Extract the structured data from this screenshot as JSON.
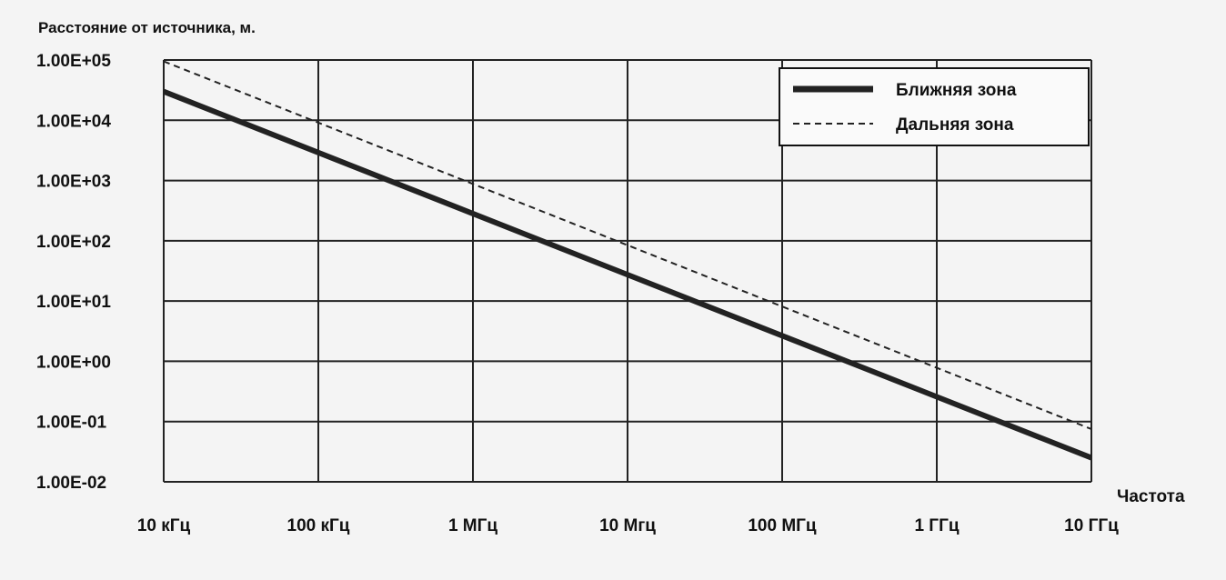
{
  "chart_data": {
    "type": "line",
    "ylabel": "Расстояние от источника, м.",
    "xlabel": "Частота",
    "x_scale": "log",
    "y_scale": "log",
    "x_unit": "Hz",
    "y_unit": "m",
    "x_ticks": [
      {
        "value": 10000,
        "label": "10 кГц"
      },
      {
        "value": 100000,
        "label": "100 кГц"
      },
      {
        "value": 1000000,
        "label": "1 МГц"
      },
      {
        "value": 10000000,
        "label": "10 Мгц"
      },
      {
        "value": 100000000,
        "label": "100 МГц"
      },
      {
        "value": 1000000000,
        "label": "1 ГГц"
      },
      {
        "value": 10000000000,
        "label": "10 ГГц"
      }
    ],
    "y_ticks": [
      {
        "value": 0.01,
        "label": "1.00E-02"
      },
      {
        "value": 0.1,
        "label": "1.00E-01"
      },
      {
        "value": 1,
        "label": "1.00E+00"
      },
      {
        "value": 10,
        "label": "1.00E+01"
      },
      {
        "value": 100,
        "label": "1.00E+02"
      },
      {
        "value": 1000,
        "label": "1.00E+03"
      },
      {
        "value": 10000,
        "label": "1.00E+04"
      },
      {
        "value": 100000,
        "label": "1.00E+05"
      }
    ],
    "xlim": [
      10000,
      10000000000
    ],
    "ylim": [
      0.01,
      100000
    ],
    "grid": true,
    "legend_position": "top-right",
    "series": [
      {
        "name": "Ближняя зона",
        "style": "solid",
        "x": [
          10000,
          10000000000
        ],
        "y": [
          30000,
          0.025
        ]
      },
      {
        "name": "Дальняя зона",
        "style": "dashed",
        "x": [
          10000,
          10000000000
        ],
        "y": [
          95000,
          0.075
        ]
      }
    ]
  }
}
